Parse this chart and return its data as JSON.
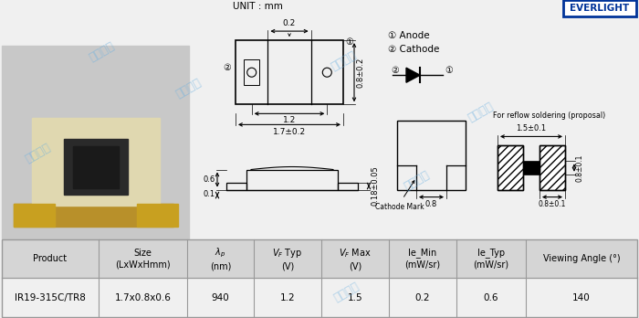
{
  "unit_text": "UNIT : mm",
  "everlight_text": "EVERLIGHT",
  "table_headers": [
    "Product",
    "Size\n(LxWxHmm)",
    "λₚ\n(nm)",
    "V₂ Typ\n(V)",
    "V₂ Max\n(V)",
    "Ie_Min\n(mW/sr)",
    "Ie_Typ\n(mW/sr)",
    "Viewing Angle (°)"
  ],
  "table_row": [
    "IR19-315C/TR8",
    "1.7x0.8x0.6",
    "940",
    "1.2",
    "1.5",
    "0.2",
    "0.6",
    "140"
  ],
  "bg_color": "#f0f0f0",
  "table_header_bg": "#d0d0d0",
  "border_color": "#888888",
  "watermark_text": "超毅电子",
  "watermark_color": "#6ab0e0",
  "dim_0_2": "0.2",
  "dim_0_8": "0.8±0.2",
  "dim_1_2": "1.2",
  "dim_1_7": "1.7±0.2",
  "dim_0_6": "0.6",
  "dim_0_1": "0.1",
  "dim_0_18": "0.18±0.05",
  "dim_0_8b": "0.8",
  "dim_1_5": "1.5±0.1",
  "dim_0_8c": "0.8±0.1",
  "dim_0_8d": "0.8±0.1",
  "anode_text": "① Anode",
  "cathode_text": "② Cathode",
  "cathode_mark": "Cathode Mark",
  "reflow_text": "For reflow soldering (proposal)"
}
